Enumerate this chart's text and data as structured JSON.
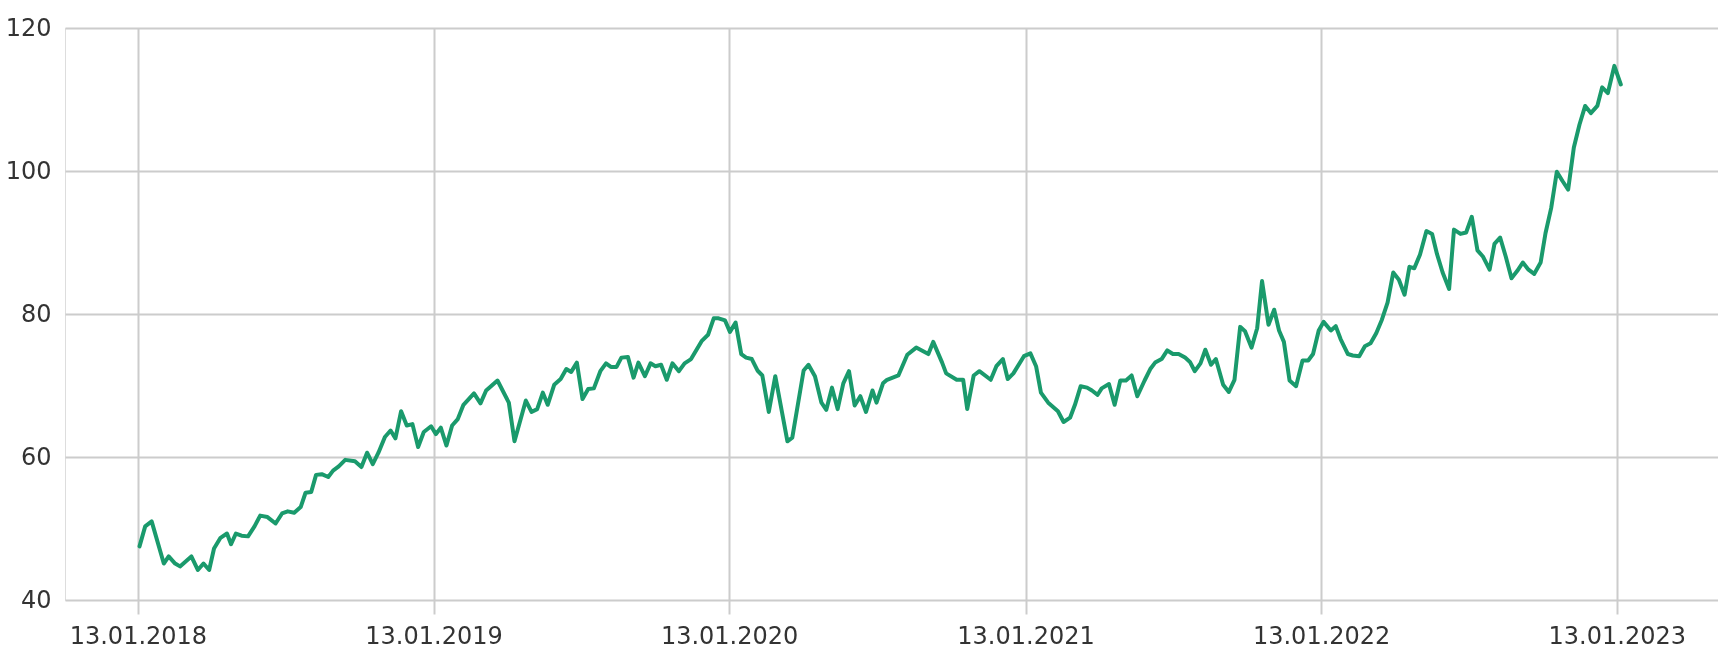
{
  "chart_data": {
    "type": "line",
    "x": [
      "2018-01-15",
      "2018-01-22",
      "2018-01-30",
      "2018-02-14",
      "2018-02-20",
      "2018-02-28",
      "2018-03-06",
      "2018-03-20",
      "2018-03-28",
      "2018-04-04",
      "2018-04-11",
      "2018-04-17",
      "2018-04-25",
      "2018-05-03",
      "2018-05-08",
      "2018-05-14",
      "2018-05-21",
      "2018-05-29",
      "2018-06-06",
      "2018-06-13",
      "2018-06-22",
      "2018-07-02",
      "2018-07-10",
      "2018-07-17",
      "2018-07-25",
      "2018-08-02",
      "2018-08-08",
      "2018-08-15",
      "2018-08-21",
      "2018-08-28",
      "2018-09-05",
      "2018-09-11",
      "2018-09-18",
      "2018-09-26",
      "2018-10-08",
      "2018-10-16",
      "2018-10-23",
      "2018-10-30",
      "2018-11-06",
      "2018-11-14",
      "2018-11-21",
      "2018-11-27",
      "2018-12-04",
      "2018-12-11",
      "2018-12-18",
      "2018-12-25",
      "2019-01-01",
      "2019-01-10",
      "2019-01-16",
      "2019-01-22",
      "2019-01-29",
      "2019-02-05",
      "2019-02-12",
      "2019-02-19",
      "2019-03-04",
      "2019-03-12",
      "2019-03-19",
      "2019-04-02",
      "2019-04-16",
      "2019-04-23",
      "2019-05-07",
      "2019-05-14",
      "2019-05-21",
      "2019-05-28",
      "2019-06-03",
      "2019-06-11",
      "2019-06-19",
      "2019-06-26",
      "2019-07-02",
      "2019-07-09",
      "2019-07-16",
      "2019-07-23",
      "2019-07-30",
      "2019-08-07",
      "2019-08-14",
      "2019-08-20",
      "2019-08-27",
      "2019-09-02",
      "2019-09-10",
      "2019-09-17",
      "2019-09-23",
      "2019-10-01",
      "2019-10-08",
      "2019-10-14",
      "2019-10-21",
      "2019-10-28",
      "2019-11-04",
      "2019-11-12",
      "2019-11-19",
      "2019-11-27",
      "2019-12-10",
      "2019-12-18",
      "2019-12-25",
      "2019-12-31",
      "2020-01-08",
      "2020-01-14",
      "2020-01-21",
      "2020-01-28",
      "2020-02-03",
      "2020-02-10",
      "2020-02-17",
      "2020-02-23",
      "2020-03-02",
      "2020-03-10",
      "2020-03-25",
      "2020-03-31",
      "2020-04-14",
      "2020-04-20",
      "2020-04-28",
      "2020-05-06",
      "2020-05-12",
      "2020-05-19",
      "2020-05-26",
      "2020-06-02",
      "2020-06-09",
      "2020-06-16",
      "2020-06-23",
      "2020-06-30",
      "2020-07-08",
      "2020-07-13",
      "2020-07-21",
      "2020-07-26",
      "2020-08-09",
      "2020-08-20",
      "2020-08-31",
      "2020-09-15",
      "2020-09-21",
      "2020-10-02",
      "2020-10-07",
      "2020-10-20",
      "2020-10-28",
      "2020-11-02",
      "2020-11-10",
      "2020-11-17",
      "2020-12-01",
      "2020-12-08",
      "2020-12-16",
      "2020-12-22",
      "2020-12-29",
      "2021-01-11",
      "2021-01-19",
      "2021-01-26",
      "2021-02-01",
      "2021-02-10",
      "2021-02-22",
      "2021-03-01",
      "2021-03-09",
      "2021-03-15",
      "2021-03-22",
      "2021-03-30",
      "2021-04-05",
      "2021-04-12",
      "2021-04-17",
      "2021-04-26",
      "2021-05-03",
      "2021-05-10",
      "2021-05-17",
      "2021-05-24",
      "2021-05-31",
      "2021-06-09",
      "2021-06-16",
      "2021-06-22",
      "2021-06-30",
      "2021-07-07",
      "2021-07-14",
      "2021-07-21",
      "2021-07-29",
      "2021-08-04",
      "2021-08-10",
      "2021-08-17",
      "2021-08-23",
      "2021-08-30",
      "2021-09-05",
      "2021-09-14",
      "2021-09-21",
      "2021-09-28",
      "2021-10-05",
      "2021-10-11",
      "2021-10-19",
      "2021-10-26",
      "2021-11-01",
      "2021-11-09",
      "2021-11-16",
      "2021-11-22",
      "2021-11-28",
      "2021-12-05",
      "2021-12-13",
      "2021-12-21",
      "2021-12-28",
      "2022-01-03",
      "2022-01-10",
      "2022-01-16",
      "2022-01-25",
      "2022-01-31",
      "2022-02-06",
      "2022-02-15",
      "2022-02-21",
      "2022-03-01",
      "2022-03-08",
      "2022-03-15",
      "2022-03-22",
      "2022-03-29",
      "2022-04-05",
      "2022-04-12",
      "2022-04-19",
      "2022-04-26",
      "2022-05-02",
      "2022-05-08",
      "2022-05-15",
      "2022-05-23",
      "2022-05-30",
      "2022-06-05",
      "2022-06-12",
      "2022-06-20",
      "2022-06-26",
      "2022-07-04",
      "2022-07-11",
      "2022-07-18",
      "2022-07-25",
      "2022-08-01",
      "2022-08-09",
      "2022-08-15",
      "2022-08-22",
      "2022-08-29",
      "2022-09-05",
      "2022-09-12",
      "2022-09-19",
      "2022-09-26",
      "2022-10-03",
      "2022-10-11",
      "2022-10-17",
      "2022-10-24",
      "2022-10-31",
      "2022-11-07",
      "2022-11-14",
      "2022-11-21",
      "2022-11-28",
      "2022-12-05",
      "2022-12-12",
      "2022-12-20",
      "2022-12-26",
      "2023-01-02",
      "2023-01-10",
      "2023-01-18"
    ],
    "series": [
      {
        "color": "#1a9a6c",
        "values": [
          47.5,
          50.3,
          51.0,
          45.1,
          46.1,
          45.1,
          44.7,
          46.1,
          44.2,
          45.1,
          44.2,
          47.2,
          48.7,
          49.3,
          47.8,
          49.3,
          49.0,
          48.9,
          50.3,
          51.8,
          51.6,
          50.7,
          52.1,
          52.4,
          52.2,
          53.0,
          55.0,
          55.1,
          57.5,
          57.6,
          57.2,
          58.1,
          58.7,
          59.6,
          59.4,
          58.6,
          60.6,
          59.0,
          60.6,
          62.8,
          63.7,
          62.6,
          66.4,
          64.4,
          64.6,
          61.4,
          63.5,
          64.3,
          63.2,
          64.1,
          61.6,
          64.4,
          65.3,
          67.3,
          68.9,
          67.5,
          69.3,
          70.7,
          67.6,
          62.2,
          67.9,
          66.3,
          66.7,
          69.0,
          67.3,
          70.1,
          70.9,
          72.3,
          71.9,
          73.2,
          68.1,
          69.5,
          69.6,
          72.0,
          73.1,
          72.6,
          72.6,
          73.9,
          74.0,
          71.1,
          73.2,
          71.3,
          73.1,
          72.7,
          72.9,
          70.8,
          73.1,
          72.0,
          73.1,
          73.7,
          76.2,
          77.1,
          79.4,
          79.4,
          79.1,
          77.5,
          78.8,
          74.4,
          73.9,
          73.7,
          72.1,
          71.4,
          66.3,
          71.3,
          62.2,
          62.7,
          72.1,
          72.9,
          71.3,
          67.6,
          66.6,
          69.7,
          66.7,
          70.3,
          72.0,
          67.2,
          68.5,
          66.3,
          69.3,
          67.6,
          70.3,
          70.8,
          71.4,
          74.3,
          75.3,
          74.4,
          76.1,
          73.2,
          71.7,
          70.8,
          70.8,
          66.7,
          71.4,
          72.0,
          70.8,
          72.7,
          73.7,
          70.9,
          71.7,
          74.1,
          74.5,
          72.7,
          69.0,
          67.6,
          66.4,
          64.9,
          65.5,
          67.3,
          69.9,
          69.7,
          69.3,
          68.7,
          69.6,
          70.2,
          67.3,
          70.7,
          70.7,
          71.4,
          68.5,
          70.7,
          72.3,
          73.2,
          73.7,
          74.9,
          74.4,
          74.4,
          73.9,
          73.3,
          72.0,
          73.1,
          75.0,
          72.9,
          73.7,
          70.1,
          69.1,
          70.8,
          78.2,
          77.6,
          75.3,
          78.0,
          84.6,
          78.5,
          80.6,
          77.7,
          76.1,
          70.7,
          69.9,
          73.5,
          73.5,
          74.4,
          77.7,
          78.9,
          77.7,
          78.3,
          76.5,
          74.4,
          74.2,
          74.1,
          75.5,
          75.9,
          77.3,
          79.2,
          81.6,
          85.8,
          84.8,
          82.7,
          86.6,
          86.4,
          88.3,
          91.6,
          91.2,
          88.4,
          85.8,
          83.5,
          91.8,
          91.2,
          91.4,
          93.6,
          88.9,
          88.0,
          86.2,
          89.8,
          90.7,
          88.0,
          85.0,
          86.0,
          87.2,
          86.2,
          85.6,
          87.2,
          91.3,
          94.8,
          99.9,
          98.6,
          97.4,
          103.3,
          106.5,
          109.1,
          108.1,
          109.1,
          111.7,
          110.9,
          114.7,
          112.1
        ]
      }
    ],
    "xlim": [
      "2017-10-15",
      "2023-05-18"
    ],
    "xticks": [
      {
        "value": "2018-01-13",
        "label": "13.01.2018"
      },
      {
        "value": "2019-01-13",
        "label": "13.01.2019"
      },
      {
        "value": "2020-01-13",
        "label": "13.01.2020"
      },
      {
        "value": "2021-01-13",
        "label": "13.01.2021"
      },
      {
        "value": "2022-01-13",
        "label": "13.01.2022"
      },
      {
        "value": "2023-01-13",
        "label": "13.01.2023"
      }
    ],
    "ylim": [
      40,
      120
    ],
    "yticks": [
      40,
      60,
      80,
      100,
      120
    ],
    "grid": true,
    "marker": "none",
    "line_style": "solid"
  }
}
